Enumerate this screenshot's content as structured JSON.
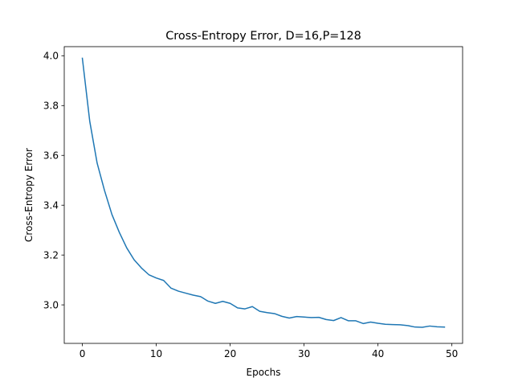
{
  "chart_data": {
    "type": "line",
    "title": "Cross-Entropy Error, D=16,P=128",
    "xlabel": "Epochs",
    "ylabel": "Cross-Entropy Error",
    "xlim": [
      -2.45,
      51.45
    ],
    "ylim": [
      2.8454,
      4.0366
    ],
    "xticks": [
      0,
      10,
      20,
      30,
      40,
      50
    ],
    "yticks": [
      3.0,
      3.2,
      3.4,
      3.6,
      3.8,
      4.0
    ],
    "xtick_labels": [
      "0",
      "10",
      "20",
      "30",
      "40",
      "50"
    ],
    "ytick_labels": [
      "3.0",
      "3.2",
      "3.4",
      "3.6",
      "3.8",
      "4.0"
    ],
    "grid": false,
    "series": [
      {
        "color": "#1f77b4",
        "x": [
          0,
          1,
          2,
          3,
          4,
          5,
          6,
          7,
          8,
          9,
          10,
          11,
          12,
          13,
          14,
          15,
          16,
          17,
          18,
          19,
          20,
          21,
          22,
          23,
          24,
          25,
          26,
          27,
          28,
          29,
          30,
          31,
          32,
          33,
          34,
          35,
          36,
          37,
          38,
          39,
          40,
          41,
          42,
          43,
          44,
          45,
          46,
          47,
          48,
          49
        ],
        "y": [
          3.99,
          3.737,
          3.569,
          3.459,
          3.363,
          3.291,
          3.229,
          3.181,
          3.148,
          3.121,
          3.108,
          3.098,
          3.067,
          3.055,
          3.047,
          3.039,
          3.033,
          3.015,
          3.006,
          3.014,
          3.006,
          2.988,
          2.984,
          2.993,
          2.974,
          2.969,
          2.965,
          2.954,
          2.947,
          2.953,
          2.951,
          2.949,
          2.95,
          2.941,
          2.937,
          2.949,
          2.936,
          2.936,
          2.925,
          2.931,
          2.926,
          2.922,
          2.921,
          2.92,
          2.917,
          2.911,
          2.91,
          2.915,
          2.912,
          2.911
        ]
      }
    ]
  }
}
